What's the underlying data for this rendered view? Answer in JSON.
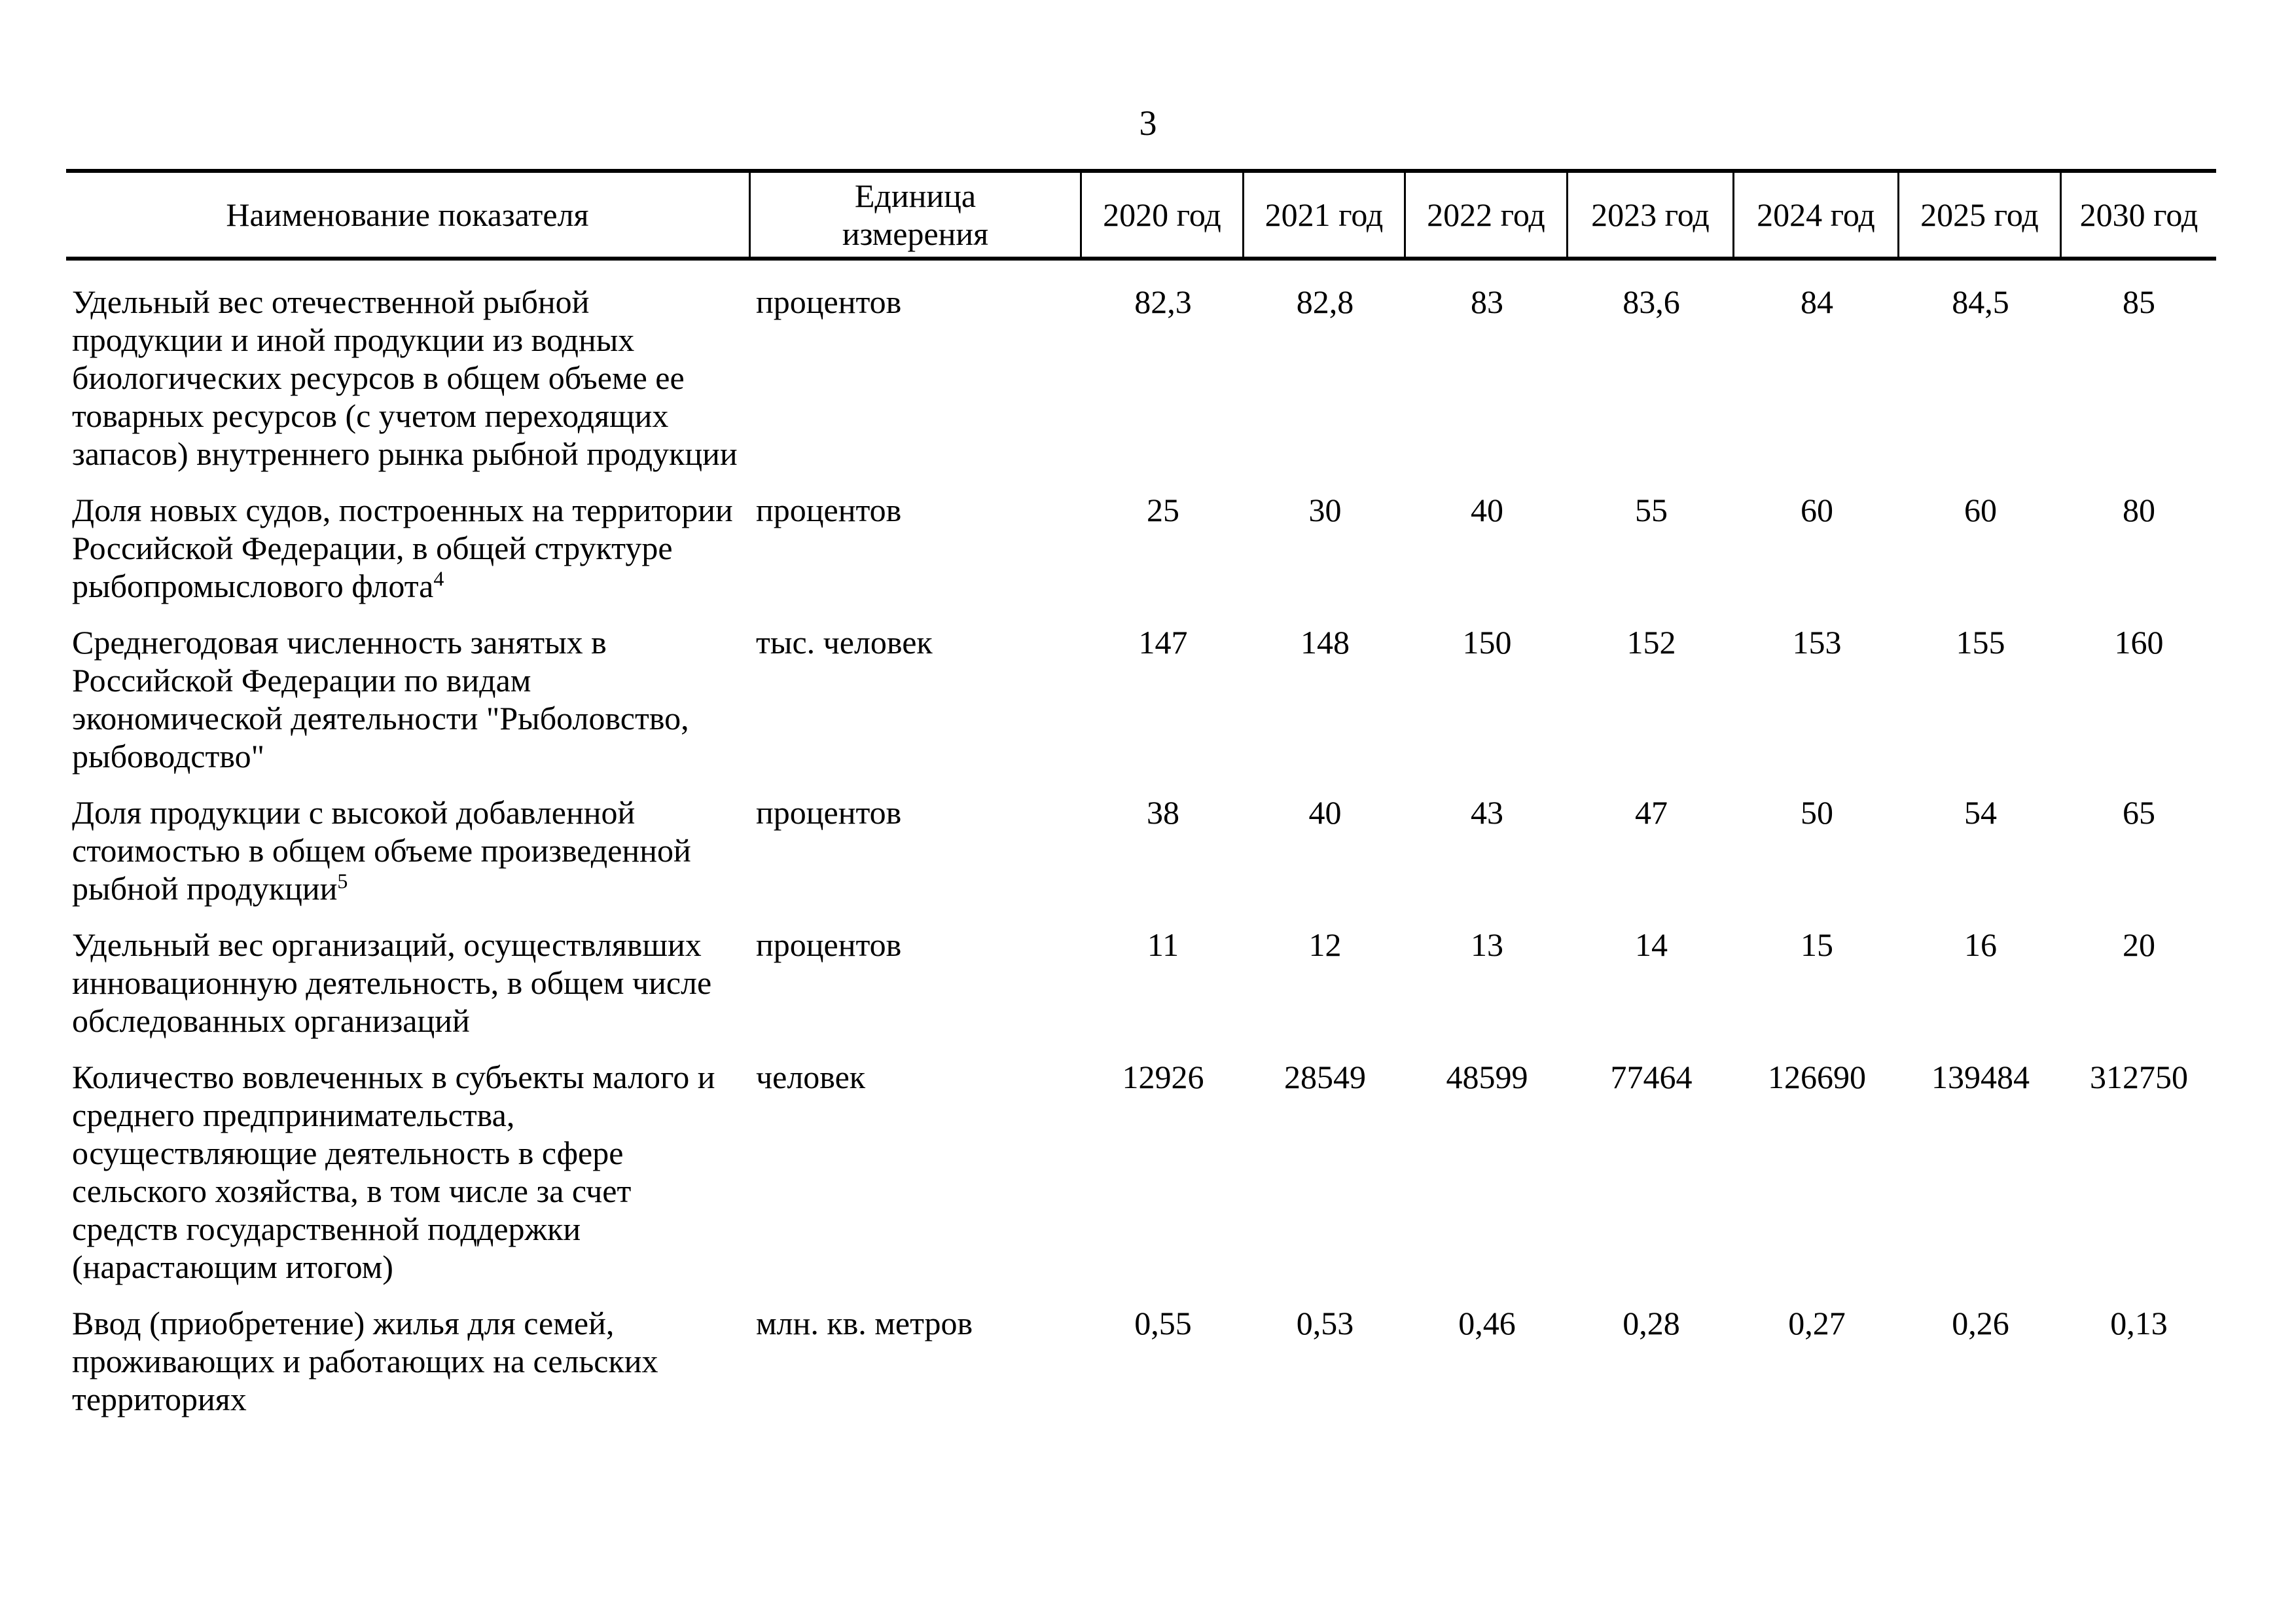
{
  "page": {
    "number": "3"
  },
  "table": {
    "header": {
      "indicator": "Наименование показателя",
      "unit": [
        "Единица",
        "измерения"
      ],
      "years": [
        "2020 год",
        "2021 год",
        "2022 год",
        "2023 год",
        "2024 год",
        "2025 год",
        "2030 год"
      ]
    },
    "rows": [
      {
        "indicator_lines": [
          "Удельный вес отечественной рыбной",
          "продукции и иной продукции из водных",
          "биологических ресурсов в общем объеме ее",
          "товарных ресурсов (с учетом переходящих",
          "запасов) внутреннего рынка рыбной продукции"
        ],
        "superscript": "",
        "unit": "процентов",
        "values": [
          "82,3",
          "82,8",
          "83",
          "83,6",
          "84",
          "84,5",
          "85"
        ]
      },
      {
        "indicator_lines": [
          "Доля новых судов, построенных на территории",
          "Российской Федерации, в общей структуре",
          "рыбопромыслового флота"
        ],
        "superscript": "4",
        "unit": "процентов",
        "values": [
          "25",
          "30",
          "40",
          "55",
          "60",
          "60",
          "80"
        ]
      },
      {
        "indicator_lines": [
          "Среднегодовая численность занятых в",
          "Российской Федерации по видам",
          "экономической деятельности \"Рыболовство,",
          "рыбоводство\""
        ],
        "superscript": "",
        "unit": "тыс. человек",
        "values": [
          "147",
          "148",
          "150",
          "152",
          "153",
          "155",
          "160"
        ]
      },
      {
        "indicator_lines": [
          "Доля продукции с высокой добавленной",
          "стоимостью в общем объеме произведенной",
          "рыбной продукции"
        ],
        "superscript": "5",
        "unit": "процентов",
        "values": [
          "38",
          "40",
          "43",
          "47",
          "50",
          "54",
          "65"
        ]
      },
      {
        "indicator_lines": [
          "Удельный вес организаций, осуществлявших",
          "инновационную деятельность, в общем числе",
          "обследованных организаций"
        ],
        "superscript": "",
        "unit": "процентов",
        "values": [
          "11",
          "12",
          "13",
          "14",
          "15",
          "16",
          "20"
        ]
      },
      {
        "indicator_lines": [
          "Количество вовлеченных в субъекты малого и",
          "среднего предпринимательства,",
          "осуществляющие деятельность в сфере",
          "сельского хозяйства, в том числе за счет",
          "средств государственной поддержки",
          "(нарастающим итогом)"
        ],
        "superscript": "",
        "unit": "человек",
        "values": [
          "12926",
          "28549",
          "48599",
          "77464",
          "126690",
          "139484",
          "312750"
        ]
      },
      {
        "indicator_lines": [
          "Ввод (приобретение) жилья для семей,",
          "проживающих и работающих на сельских",
          "территориях"
        ],
        "superscript": "",
        "unit": "млн. кв. метров",
        "values": [
          "0,55",
          "0,53",
          "0,46",
          "0,28",
          "0,27",
          "0,26",
          "0,13"
        ]
      }
    ]
  }
}
